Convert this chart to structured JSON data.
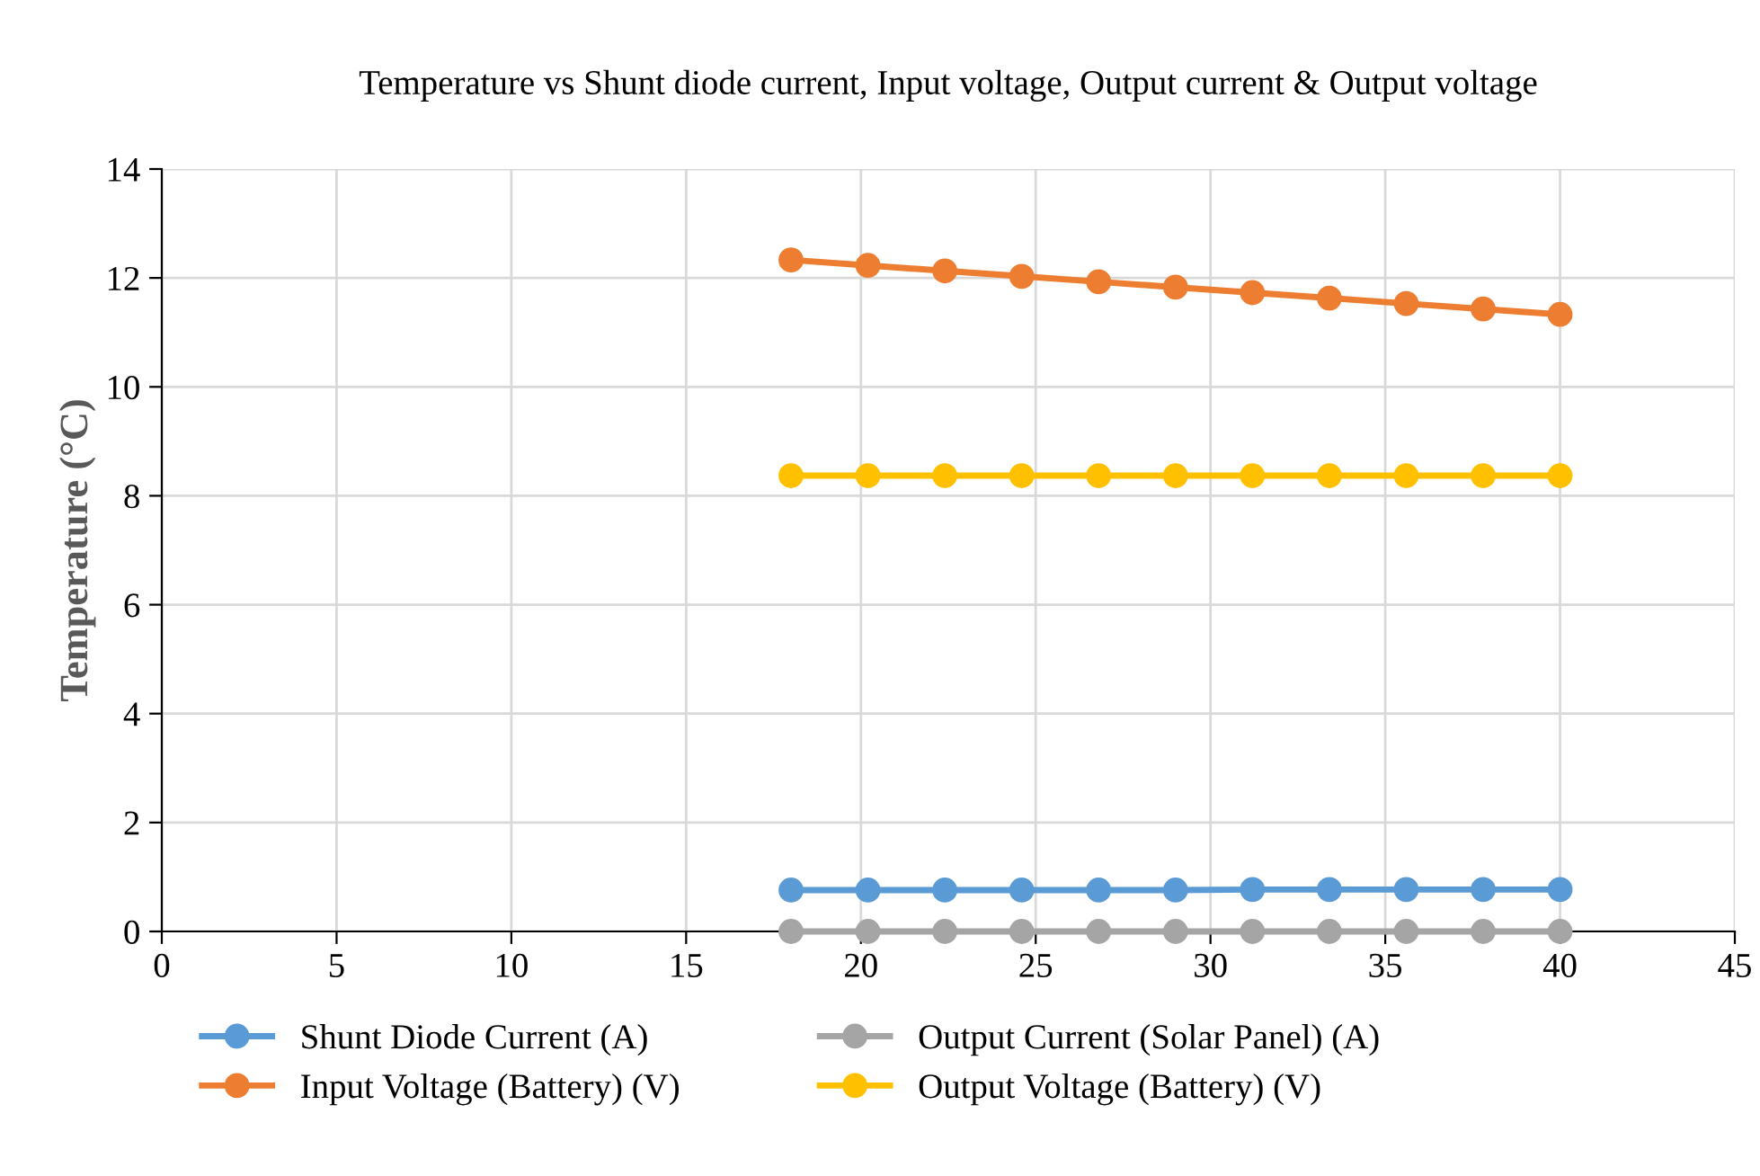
{
  "chart_data": {
    "type": "line",
    "title": "Temperature vs Shunt diode current, Input voltage, Output current & Output voltage",
    "ylabel": "Temperature (°C)",
    "x": [
      18,
      20.2,
      22.4,
      24.6,
      26.8,
      29,
      31.2,
      33.4,
      35.6,
      37.8,
      40
    ],
    "series": [
      {
        "name": "Shunt Diode Current (A)",
        "color": "#5b9bd5",
        "values": [
          0.76,
          0.76,
          0.76,
          0.76,
          0.76,
          0.76,
          0.77,
          0.77,
          0.77,
          0.77,
          0.77
        ]
      },
      {
        "name": "Input Voltage (Battery) (V)",
        "color": "#ed7d31",
        "values": [
          12.33,
          12.23,
          12.13,
          12.03,
          11.93,
          11.83,
          11.73,
          11.63,
          11.53,
          11.43,
          11.33
        ]
      },
      {
        "name": "Output Current (Solar Panel) (A)",
        "color": "#a5a5a5",
        "values": [
          0,
          0,
          0,
          0,
          0,
          0,
          0,
          0,
          0,
          0,
          0
        ]
      },
      {
        "name": "Output Voltage (Battery) (V)",
        "color": "#ffc000",
        "values": [
          8.37,
          8.37,
          8.37,
          8.37,
          8.37,
          8.37,
          8.37,
          8.37,
          8.37,
          8.37,
          8.37
        ]
      }
    ],
    "xlim": [
      0,
      45
    ],
    "xticks": [
      0,
      5,
      10,
      15,
      20,
      25,
      30,
      35,
      40,
      45
    ],
    "ylim": [
      0,
      14
    ],
    "yticks": [
      0,
      2,
      4,
      6,
      8,
      10,
      12,
      14
    ],
    "grid": true,
    "legend": "bottom",
    "marker": "circle",
    "line_style": "solid"
  }
}
